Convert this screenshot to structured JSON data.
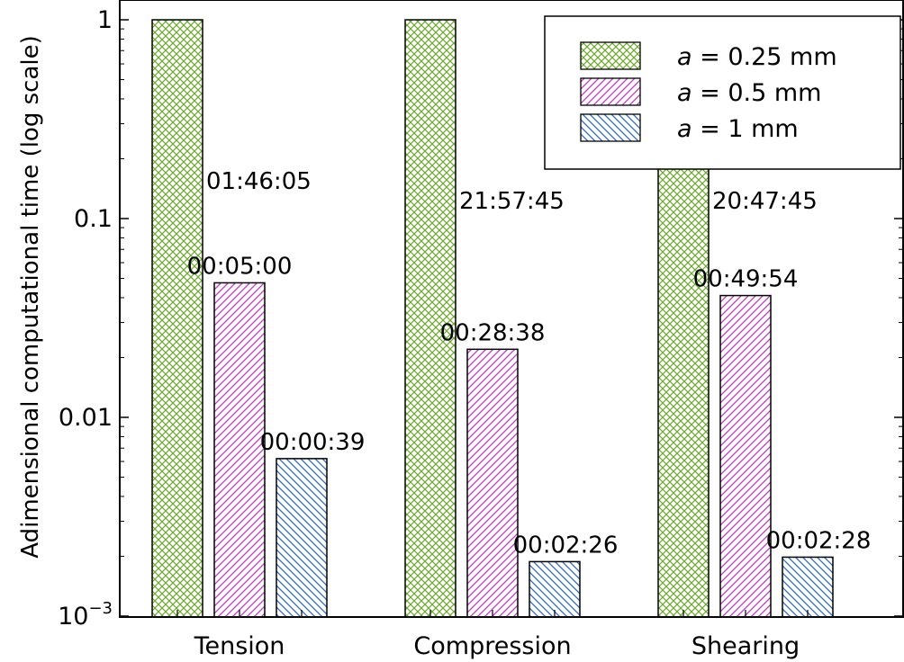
{
  "chart_data": {
    "type": "bar",
    "title": "",
    "xlabel": "",
    "ylabel": "Adimensional computational time (log scale)",
    "yscale": "log",
    "ylim": [
      0.001,
      1
    ],
    "yticks": [
      {
        "value": 1,
        "label": "1"
      },
      {
        "value": 0.1,
        "label": "0.1"
      },
      {
        "value": 0.01,
        "label": "0.01"
      },
      {
        "value": 0.001,
        "label": "10",
        "exponent": "−3"
      }
    ],
    "categories": [
      "Tension",
      "Compression",
      "Shearing"
    ],
    "series": [
      {
        "name": "a = 0.25 mm",
        "legend_var": "a",
        "legend_rest": " = 0.25 mm",
        "color": "#6aaa2a",
        "hatch": "crosshatch",
        "values": [
          1,
          1,
          1
        ],
        "labels": [
          "01:46:05",
          "21:57:45",
          "20:47:45"
        ]
      },
      {
        "name": "a = 0.5 mm",
        "legend_var": "a",
        "legend_rest": " = 0.5 mm",
        "color": "#c832c8",
        "hatch": "diagonal",
        "values": [
          0.0475,
          0.022,
          0.041
        ],
        "labels": [
          "00:05:00",
          "00:28:38",
          "00:49:54"
        ]
      },
      {
        "name": "a = 1 mm",
        "legend_var": "a",
        "legend_rest": " = 1 mm",
        "color": "#2a6ac8",
        "hatch": "antidiagonal",
        "values": [
          0.0062,
          0.00188,
          0.00198
        ],
        "labels": [
          "00:00:39",
          "00:02:26",
          "00:02:28"
        ]
      }
    ],
    "grid": false,
    "legend_position": "top-right"
  }
}
